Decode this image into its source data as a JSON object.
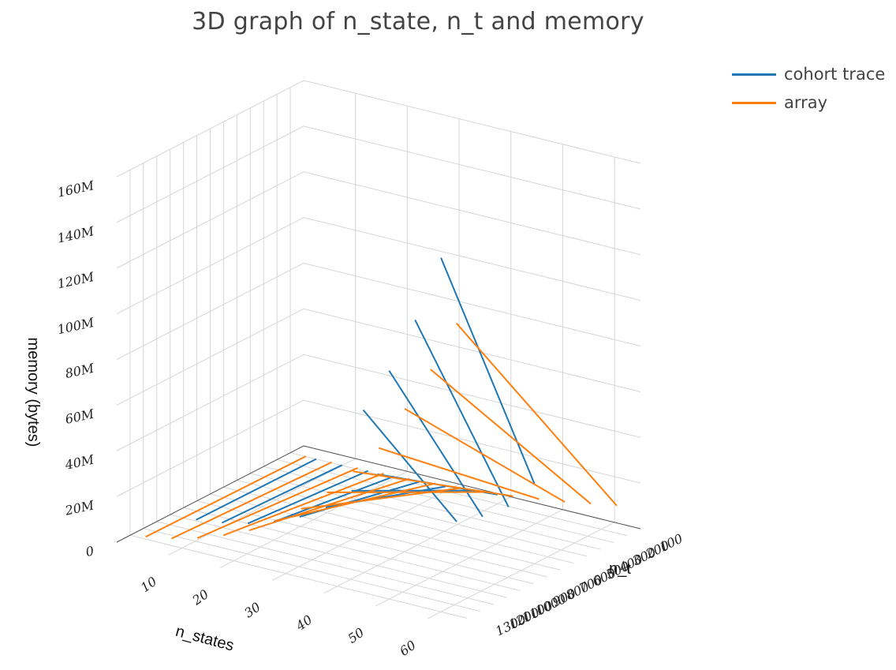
{
  "chart_data": {
    "type": "line3d",
    "title": "3D graph of n_state, n_t and memory",
    "xlabel": "n_states",
    "ylabel": "n_t",
    "zlabel": "memory (bytes)",
    "x_ticks": [
      "10",
      "20",
      "30",
      "40",
      "50",
      "60"
    ],
    "y_ticks": [
      "100",
      "200",
      "300",
      "400",
      "500",
      "600",
      "700",
      "800",
      "900",
      "1000",
      "1100",
      "1200",
      "1300"
    ],
    "z_ticks": [
      "0",
      "20M",
      "40M",
      "60M",
      "80M",
      "100M",
      "120M",
      "140M",
      "160M"
    ],
    "xlim": [
      0,
      65
    ],
    "ylim": [
      0,
      1400
    ],
    "zlim": [
      0,
      160
    ],
    "z_unit": "M",
    "legend_position": "top-right",
    "series": [
      {
        "name": "cohort trace",
        "color": "#1f77b4",
        "lines": [
          {
            "n_states": 5,
            "n_t": [
              100,
              1000
            ],
            "memory": [
              0.05,
              0.5
            ]
          },
          {
            "n_states": 10,
            "n_t": [
              100,
              1000
            ],
            "memory": [
              0.2,
              2
            ]
          },
          {
            "n_states": 15,
            "n_t": [
              100,
              1000
            ],
            "memory": [
              0.45,
              4.5
            ]
          },
          {
            "n_states": 20,
            "n_t": [
              100,
              1000
            ],
            "memory": [
              0.8,
              8
            ]
          },
          {
            "n_states": 25,
            "n_t": [
              100,
              1000
            ],
            "memory": [
              1.3,
              13
            ]
          },
          {
            "n_states": 30,
            "n_t": [
              100,
              1000
            ],
            "memory": [
              2,
              20
            ]
          },
          {
            "n_states": 35,
            "n_t": [
              100,
              1000
            ],
            "memory": [
              3,
              30
            ]
          },
          {
            "n_states": 40,
            "n_t": [
              100,
              1000
            ],
            "memory": [
              4,
              40
            ]
          },
          {
            "n_states": 45,
            "n_t": [
              600,
              1300
            ],
            "memory": [
              10,
              80
            ]
          },
          {
            "n_states": 50,
            "n_t": [
              600,
              1300
            ],
            "memory": [
              15,
              100
            ]
          },
          {
            "n_states": 55,
            "n_t": [
              600,
              1300
            ],
            "memory": [
              22,
              125
            ]
          },
          {
            "n_states": 60,
            "n_t": [
              600,
              1300
            ],
            "memory": [
              35,
              155
            ]
          }
        ]
      },
      {
        "name": "array",
        "color": "#ff7f0e",
        "lines": [
          {
            "n_states": 3,
            "n_t": [
              100,
              1300
            ],
            "memory": [
              0.1,
              1
            ]
          },
          {
            "n_states": 8,
            "n_t": [
              100,
              1300
            ],
            "memory": [
              0.3,
              3
            ]
          },
          {
            "n_states": 13,
            "n_t": [
              100,
              1300
            ],
            "memory": [
              0.6,
              6
            ]
          },
          {
            "n_states": 18,
            "n_t": [
              100,
              1300
            ],
            "memory": [
              1,
              10
            ]
          },
          {
            "n_states": 23,
            "n_t": [
              100,
              1300
            ],
            "memory": [
              1.5,
              15
            ]
          },
          {
            "n_states": 28,
            "n_t": [
              100,
              1300
            ],
            "memory": [
              2.2,
              22
            ]
          },
          {
            "n_states": 33,
            "n_t": [
              100,
              1300
            ],
            "memory": [
              3,
              30
            ]
          },
          {
            "n_states": 38,
            "n_t": [
              100,
              1300
            ],
            "memory": [
              4,
              40
            ]
          },
          {
            "n_states": 43,
            "n_t": [
              100,
              1300
            ],
            "memory": [
              5,
              52
            ]
          },
          {
            "n_states": 48,
            "n_t": [
              100,
              1300
            ],
            "memory": [
              6.5,
              65
            ]
          },
          {
            "n_states": 53,
            "n_t": [
              100,
              1300
            ],
            "memory": [
              8,
              85
            ]
          },
          {
            "n_states": 58,
            "n_t": [
              100,
              1300
            ],
            "memory": [
              10,
              105
            ]
          },
          {
            "n_states": 63,
            "n_t": [
              100,
              1300
            ],
            "memory": [
              12,
              128
            ]
          }
        ]
      }
    ]
  }
}
